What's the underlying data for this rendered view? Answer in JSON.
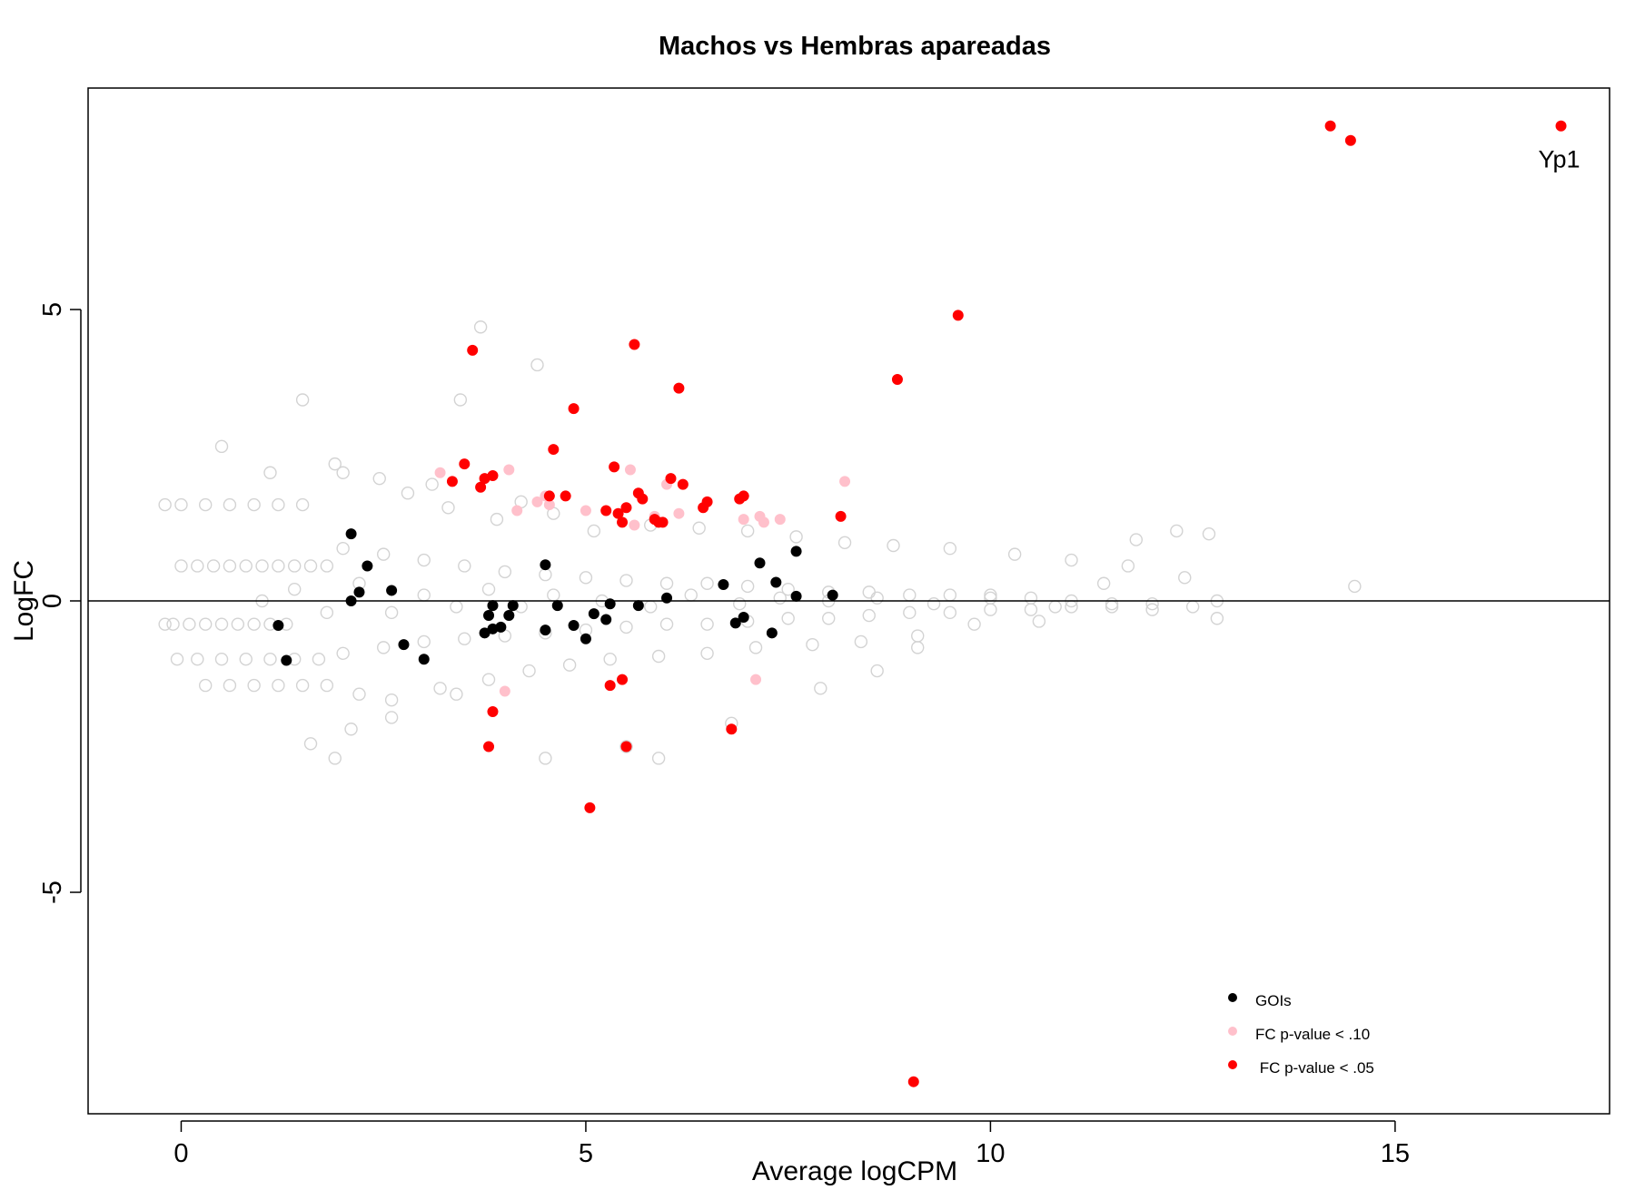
{
  "chart_data": {
    "type": "scatter",
    "title": "Machos vs Hembras apareadas",
    "xlabel": "Average logCPM",
    "ylabel": "LogFC",
    "xlim": [
      -1.15,
      17.65
    ],
    "ylim": [
      -8.8,
      8.8
    ],
    "xticks": [
      0,
      5,
      10,
      15
    ],
    "yticks": [
      -5,
      0,
      5
    ],
    "xtick_labels": [
      "0",
      "5",
      "10",
      "15"
    ],
    "ytick_labels": [
      "-5",
      "0",
      "5"
    ],
    "hline_y": 0,
    "grid": false,
    "legend_position": "bottom-right",
    "legend": [
      {
        "label": "GOIs",
        "color": "#000000"
      },
      {
        "label": "FC p-value < .10",
        "color": "#ffc0cb"
      },
      {
        "label": " FC p-value < .05",
        "color": "#ff0000"
      }
    ],
    "annotations": [
      {
        "text": "Yp1",
        "x": 17.05,
        "y": 7.95
      }
    ],
    "background_cloud": {
      "name": "all genes",
      "color": "#d3d3d3",
      "marker": "open-circle",
      "note": "dense cloud of grey open circles; representative sample",
      "points": [
        [
          -0.2,
          -0.4
        ],
        [
          -0.1,
          -0.4
        ],
        [
          0.1,
          -0.4
        ],
        [
          0.3,
          -0.4
        ],
        [
          0.5,
          -0.4
        ],
        [
          0.7,
          -0.4
        ],
        [
          0.9,
          -0.4
        ],
        [
          1.1,
          -0.4
        ],
        [
          1.3,
          -0.4
        ],
        [
          0,
          0.6
        ],
        [
          0.2,
          0.6
        ],
        [
          0.4,
          0.6
        ],
        [
          0.6,
          0.6
        ],
        [
          0.8,
          0.6
        ],
        [
          1.0,
          0.6
        ],
        [
          1.2,
          0.6
        ],
        [
          1.4,
          0.6
        ],
        [
          1.6,
          0.6
        ],
        [
          1.8,
          0.6
        ],
        [
          -0.2,
          1.65
        ],
        [
          0,
          1.65
        ],
        [
          0.3,
          1.65
        ],
        [
          0.6,
          1.65
        ],
        [
          0.9,
          1.65
        ],
        [
          1.2,
          1.65
        ],
        [
          1.5,
          1.65
        ],
        [
          -0.05,
          -1.0
        ],
        [
          0.2,
          -1.0
        ],
        [
          0.5,
          -1.0
        ],
        [
          0.8,
          -1.0
        ],
        [
          1.1,
          -1.0
        ],
        [
          1.4,
          -1.0
        ],
        [
          1.7,
          -1.0
        ],
        [
          0.3,
          -1.45
        ],
        [
          0.6,
          -1.45
        ],
        [
          0.9,
          -1.45
        ],
        [
          1.2,
          -1.45
        ],
        [
          1.5,
          -1.45
        ],
        [
          1.8,
          -1.45
        ],
        [
          0.5,
          2.65
        ],
        [
          1.1,
          2.2
        ],
        [
          1.5,
          3.45
        ],
        [
          1.9,
          2.35
        ],
        [
          2.0,
          2.2
        ],
        [
          3.1,
          2.0
        ],
        [
          3.7,
          4.7
        ],
        [
          3.45,
          3.45
        ],
        [
          4.4,
          4.05
        ],
        [
          2.45,
          2.1
        ],
        [
          2.8,
          1.85
        ],
        [
          3.3,
          1.6
        ],
        [
          3.9,
          1.4
        ],
        [
          4.2,
          1.7
        ],
        [
          4.6,
          1.5
        ],
        [
          5.1,
          1.2
        ],
        [
          5.8,
          1.3
        ],
        [
          6.4,
          1.25
        ],
        [
          7.0,
          1.2
        ],
        [
          7.6,
          1.1
        ],
        [
          8.2,
          1.0
        ],
        [
          8.8,
          0.95
        ],
        [
          9.5,
          0.9
        ],
        [
          10.3,
          0.8
        ],
        [
          11.0,
          0.7
        ],
        [
          11.7,
          0.6
        ],
        [
          12.4,
          0.4
        ],
        [
          2.0,
          0.9
        ],
        [
          2.5,
          0.8
        ],
        [
          3.0,
          0.7
        ],
        [
          3.5,
          0.6
        ],
        [
          4.0,
          0.5
        ],
        [
          4.5,
          0.45
        ],
        [
          5.0,
          0.4
        ],
        [
          5.5,
          0.35
        ],
        [
          6.0,
          0.3
        ],
        [
          6.5,
          0.3
        ],
        [
          7.0,
          0.25
        ],
        [
          7.5,
          0.2
        ],
        [
          8.0,
          0.15
        ],
        [
          8.5,
          0.15
        ],
        [
          9.0,
          0.1
        ],
        [
          9.5,
          0.1
        ],
        [
          10.0,
          0.05
        ],
        [
          10.5,
          0.05
        ],
        [
          11.0,
          0.0
        ],
        [
          11.5,
          -0.05
        ],
        [
          12.0,
          -0.05
        ],
        [
          12.5,
          -0.1
        ],
        [
          12.8,
          0.0
        ],
        [
          2.0,
          -0.9
        ],
        [
          2.5,
          -0.8
        ],
        [
          3.0,
          -0.7
        ],
        [
          3.5,
          -0.65
        ],
        [
          4.0,
          -0.6
        ],
        [
          4.5,
          -0.55
        ],
        [
          5.0,
          -0.5
        ],
        [
          5.5,
          -0.45
        ],
        [
          6.0,
          -0.4
        ],
        [
          6.5,
          -0.4
        ],
        [
          7.0,
          -0.35
        ],
        [
          7.5,
          -0.3
        ],
        [
          8.0,
          -0.3
        ],
        [
          8.5,
          -0.25
        ],
        [
          9.0,
          -0.2
        ],
        [
          9.5,
          -0.2
        ],
        [
          10.0,
          -0.15
        ],
        [
          10.5,
          -0.15
        ],
        [
          11.0,
          -0.1
        ],
        [
          11.5,
          -0.1
        ],
        [
          12.0,
          -0.15
        ],
        [
          12.8,
          -0.3
        ],
        [
          2.2,
          -1.6
        ],
        [
          2.6,
          -1.7
        ],
        [
          3.2,
          -1.5
        ],
        [
          3.8,
          -1.35
        ],
        [
          4.3,
          -1.2
        ],
        [
          4.8,
          -1.1
        ],
        [
          5.3,
          -1.0
        ],
        [
          5.9,
          -0.95
        ],
        [
          6.5,
          -0.9
        ],
        [
          7.1,
          -0.8
        ],
        [
          7.8,
          -0.75
        ],
        [
          8.4,
          -0.7
        ],
        [
          9.1,
          -0.6
        ],
        [
          9.8,
          -0.4
        ],
        [
          10.6,
          -0.35
        ],
        [
          1.6,
          -2.45
        ],
        [
          1.9,
          -2.7
        ],
        [
          2.1,
          -2.2
        ],
        [
          2.6,
          -2.0
        ],
        [
          3.4,
          -1.6
        ],
        [
          4.5,
          -2.7
        ],
        [
          5.9,
          -2.7
        ],
        [
          5.5,
          -2.5
        ],
        [
          6.8,
          -2.1
        ],
        [
          7.9,
          -1.5
        ],
        [
          8.6,
          -1.2
        ],
        [
          9.1,
          -0.8
        ],
        [
          1.0,
          0.0
        ],
        [
          1.4,
          0.2
        ],
        [
          1.8,
          -0.2
        ],
        [
          2.2,
          0.3
        ],
        [
          2.6,
          -0.2
        ],
        [
          3.0,
          0.1
        ],
        [
          3.4,
          -0.1
        ],
        [
          3.8,
          0.2
        ],
        [
          4.2,
          -0.1
        ],
        [
          4.6,
          0.1
        ],
        [
          5.2,
          0.0
        ],
        [
          5.8,
          -0.1
        ],
        [
          6.3,
          0.1
        ],
        [
          6.9,
          -0.05
        ],
        [
          7.4,
          0.05
        ],
        [
          8.0,
          0.0
        ],
        [
          8.6,
          0.05
        ],
        [
          9.3,
          -0.05
        ],
        [
          10.0,
          0.1
        ],
        [
          10.8,
          -0.1
        ],
        [
          11.4,
          0.3
        ],
        [
          11.8,
          1.05
        ],
        [
          12.3,
          1.2
        ],
        [
          12.7,
          1.15
        ],
        [
          14.5,
          0.25
        ]
      ]
    },
    "series": [
      {
        "name": "GOIs",
        "color": "#000000",
        "marker": "filled-circle",
        "points": [
          [
            1.2,
            -0.42
          ],
          [
            1.3,
            -1.02
          ],
          [
            2.1,
            1.15
          ],
          [
            2.1,
            0.0
          ],
          [
            2.2,
            0.15
          ],
          [
            2.3,
            0.6
          ],
          [
            2.6,
            0.18
          ],
          [
            2.75,
            -0.75
          ],
          [
            3.0,
            -1.0
          ],
          [
            3.75,
            -0.55
          ],
          [
            3.8,
            -0.25
          ],
          [
            3.85,
            -0.48
          ],
          [
            3.85,
            -0.08
          ],
          [
            3.95,
            -0.45
          ],
          [
            4.05,
            -0.25
          ],
          [
            4.1,
            -0.08
          ],
          [
            4.5,
            0.62
          ],
          [
            4.5,
            -0.5
          ],
          [
            4.65,
            -0.08
          ],
          [
            4.85,
            -0.42
          ],
          [
            5.0,
            -0.65
          ],
          [
            5.1,
            -0.22
          ],
          [
            5.25,
            -0.32
          ],
          [
            5.3,
            -0.05
          ],
          [
            5.65,
            -0.08
          ],
          [
            6.0,
            0.05
          ],
          [
            6.7,
            0.28
          ],
          [
            6.85,
            -0.38
          ],
          [
            6.95,
            -0.28
          ],
          [
            7.15,
            0.65
          ],
          [
            7.3,
            -0.55
          ],
          [
            7.35,
            0.32
          ],
          [
            7.6,
            0.85
          ],
          [
            7.6,
            0.08
          ],
          [
            8.05,
            0.1
          ]
        ]
      },
      {
        "name": "FC p-value < .10",
        "color": "#ffc0cb",
        "marker": "filled-circle",
        "points": [
          [
            3.2,
            2.2
          ],
          [
            4.05,
            2.25
          ],
          [
            4.15,
            1.55
          ],
          [
            4.4,
            1.7
          ],
          [
            4.5,
            1.8
          ],
          [
            4.55,
            1.65
          ],
          [
            5.0,
            1.55
          ],
          [
            5.55,
            2.25
          ],
          [
            5.6,
            1.3
          ],
          [
            5.85,
            1.45
          ],
          [
            6.0,
            2.0
          ],
          [
            6.15,
            1.5
          ],
          [
            6.95,
            1.4
          ],
          [
            7.15,
            1.45
          ],
          [
            7.2,
            1.35
          ],
          [
            7.4,
            1.4
          ],
          [
            8.2,
            2.05
          ],
          [
            4.0,
            -1.55
          ],
          [
            7.1,
            -1.35
          ]
        ]
      },
      {
        "name": " FC p-value < .05",
        "color": "#ff0000",
        "marker": "filled-circle",
        "points": [
          [
            3.35,
            2.05
          ],
          [
            3.5,
            2.35
          ],
          [
            3.6,
            4.3
          ],
          [
            3.7,
            1.95
          ],
          [
            3.75,
            2.1
          ],
          [
            3.85,
            2.15
          ],
          [
            4.55,
            1.8
          ],
          [
            4.6,
            2.6
          ],
          [
            4.75,
            1.8
          ],
          [
            4.85,
            3.3
          ],
          [
            5.25,
            1.55
          ],
          [
            5.35,
            2.3
          ],
          [
            5.4,
            1.5
          ],
          [
            5.45,
            1.35
          ],
          [
            5.5,
            1.6
          ],
          [
            5.6,
            4.4
          ],
          [
            5.65,
            1.85
          ],
          [
            5.7,
            1.75
          ],
          [
            5.85,
            1.4
          ],
          [
            5.9,
            1.35
          ],
          [
            5.95,
            1.35
          ],
          [
            6.05,
            2.1
          ],
          [
            6.15,
            3.65
          ],
          [
            6.2,
            2.0
          ],
          [
            6.45,
            1.6
          ],
          [
            6.5,
            1.7
          ],
          [
            6.9,
            1.75
          ],
          [
            6.95,
            1.8
          ],
          [
            8.15,
            1.45
          ],
          [
            8.85,
            3.8
          ],
          [
            9.6,
            4.9
          ],
          [
            14.2,
            8.15
          ],
          [
            14.45,
            7.9
          ],
          [
            17.05,
            8.15
          ],
          [
            3.85,
            -1.9
          ],
          [
            3.8,
            -2.5
          ],
          [
            5.3,
            -1.45
          ],
          [
            5.45,
            -1.35
          ],
          [
            5.5,
            -2.5
          ],
          [
            5.05,
            -3.55
          ],
          [
            6.8,
            -2.2
          ],
          [
            9.05,
            -8.25
          ]
        ]
      }
    ]
  }
}
